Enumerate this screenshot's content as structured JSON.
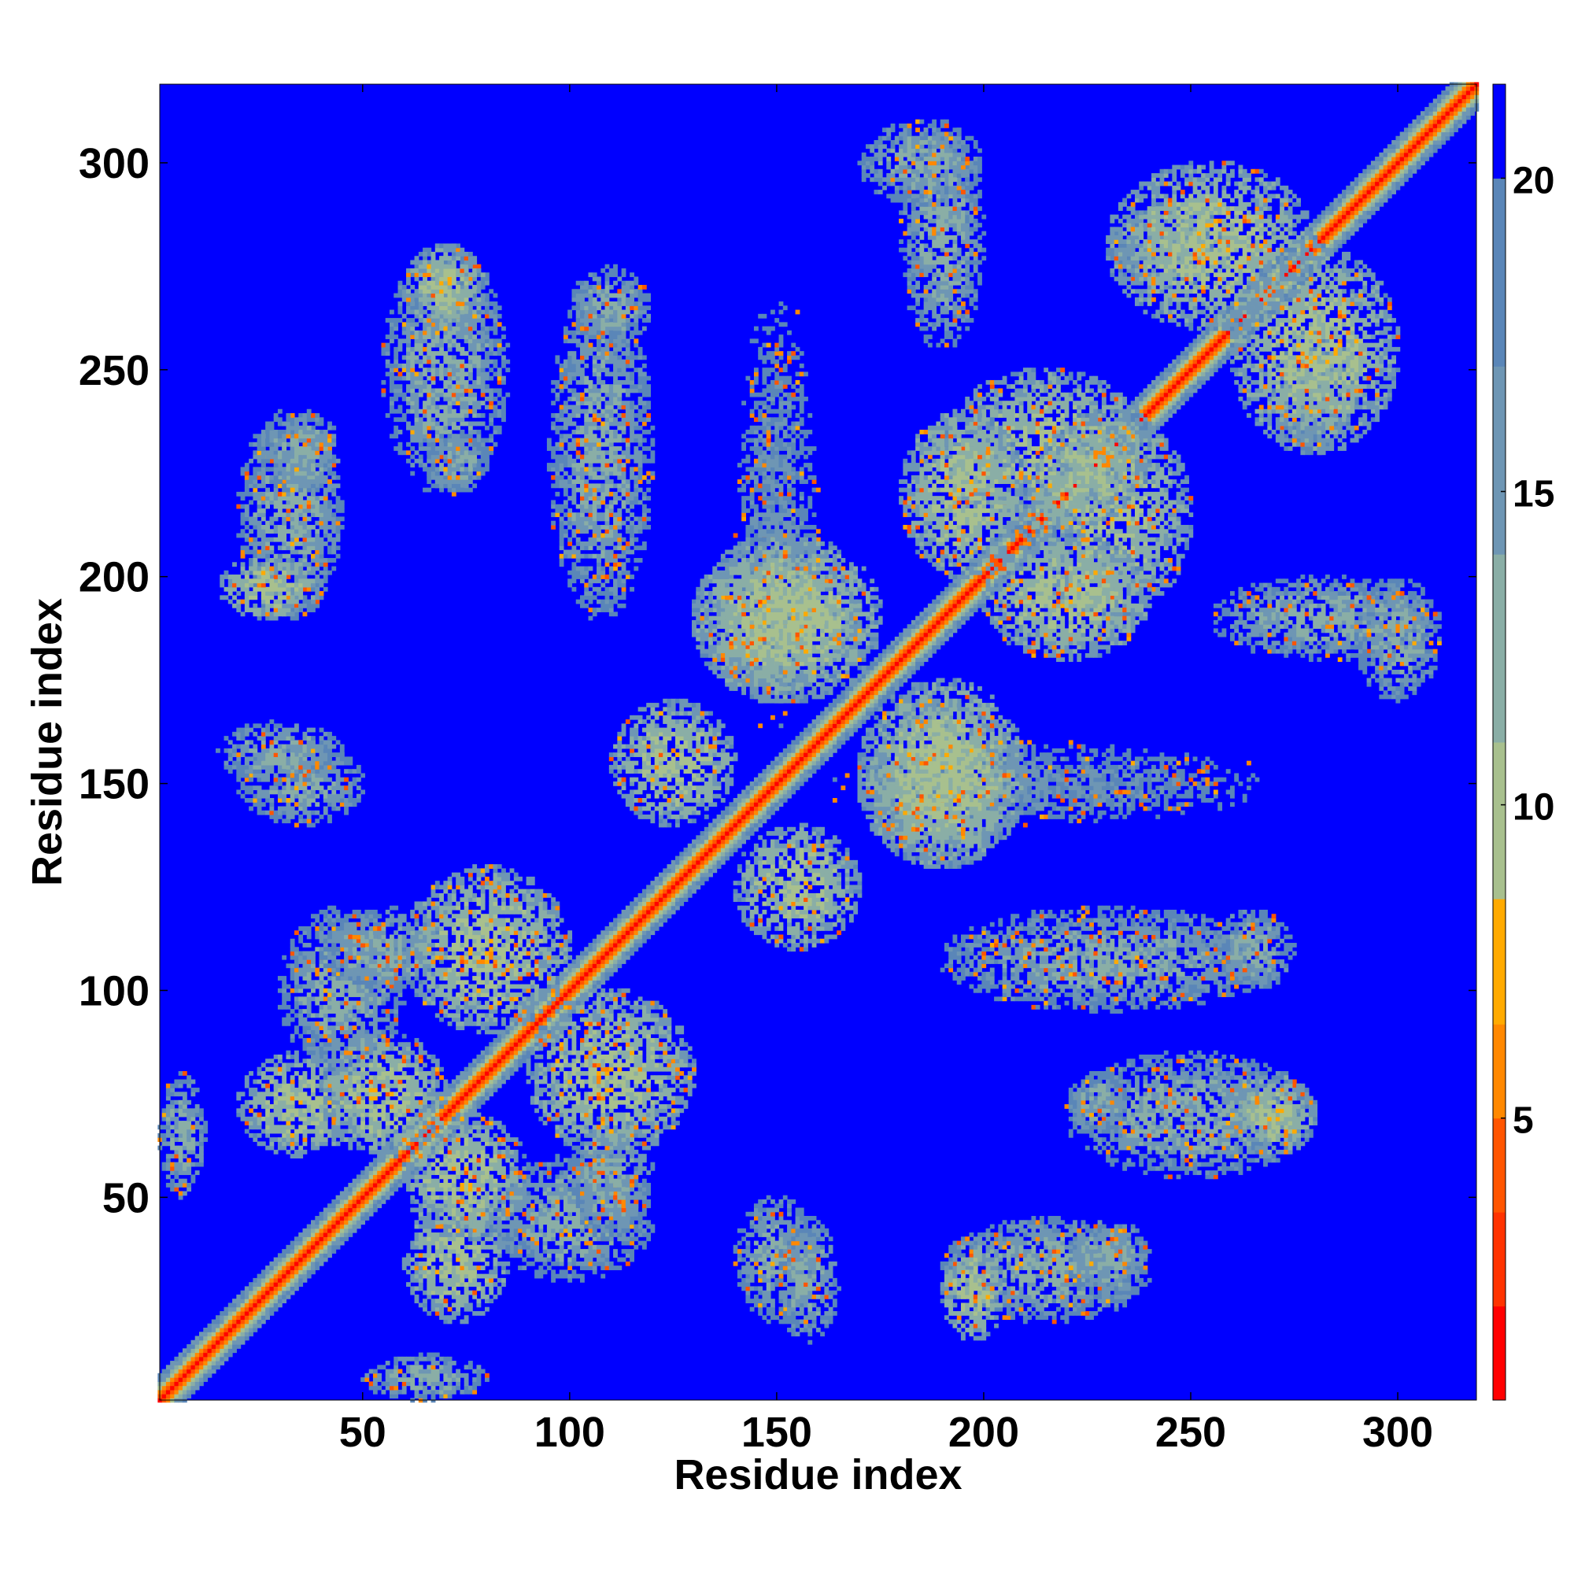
{
  "chart_data": {
    "type": "heatmap",
    "title": "",
    "xlabel": "Residue index",
    "ylabel": "Residue index",
    "xlim": [
      1,
      319
    ],
    "ylim": [
      1,
      319
    ],
    "xticks": [
      50,
      100,
      150,
      200,
      250,
      300
    ],
    "yticks": [
      50,
      100,
      150,
      200,
      250,
      300
    ],
    "xtick_labels": [
      "50",
      "100",
      "150",
      "200",
      "250",
      "300"
    ],
    "ytick_labels": [
      "50",
      "100",
      "150",
      "200",
      "250",
      "300"
    ],
    "grid": false,
    "colorbar": {
      "range": [
        0.5,
        21.5
      ],
      "ticks": [
        5,
        10,
        15,
        20
      ],
      "tick_labels": [
        "5",
        "10",
        "15",
        "20"
      ],
      "cutoff": 20,
      "colors": [
        "#ff0000",
        "#ff3300",
        "#ff5500",
        "#ff8800",
        "#ffaa00",
        "#a8c08e",
        "#8aaea6",
        "#6e96b4",
        "#5a86b8",
        "#0000ff"
      ],
      "boundaries": [
        0.5,
        2,
        3.5,
        5,
        6.5,
        8.5,
        11,
        14,
        17,
        20,
        21.5
      ]
    },
    "contact_blocks": [
      {
        "x": [
          1,
          12
        ],
        "y": [
          50,
          80
        ],
        "level": "medium"
      },
      {
        "x": [
          20,
          45
        ],
        "y": [
          190,
          240
        ],
        "level": "medium"
      },
      {
        "x": [
          55,
          85
        ],
        "y": [
          220,
          280
        ],
        "level": "medium"
      },
      {
        "x": [
          95,
          120
        ],
        "y": [
          190,
          270
        ],
        "level": "medium"
      },
      {
        "x": [
          140,
          160
        ],
        "y": [
          160,
          270
        ],
        "level": "low"
      },
      {
        "x": [
          180,
          200
        ],
        "y": [
          255,
          310
        ],
        "level": "medium"
      },
      {
        "x": [
          20,
          50
        ],
        "y": [
          140,
          160
        ],
        "level": "medium"
      },
      {
        "x": [
          30,
          60
        ],
        "y": [
          80,
          120
        ],
        "level": "medium"
      },
      {
        "x": [
          60,
          85
        ],
        "y": [
          20,
          50
        ],
        "level": "high"
      },
      {
        "x": [
          100,
          120
        ],
        "y": [
          40,
          70
        ],
        "level": "medium"
      },
      {
        "x": [
          150,
          165
        ],
        "y": [
          15,
          45
        ],
        "level": "medium"
      },
      {
        "x": [
          190,
          205
        ],
        "y": [
          15,
          40
        ],
        "level": "high"
      },
      {
        "x": [
          220,
          240
        ],
        "y": [
          25,
          45
        ],
        "level": "medium"
      },
      {
        "x": [
          220,
          235
        ],
        "y": [
          65,
          80
        ],
        "level": "medium"
      },
      {
        "x": [
          260,
          280
        ],
        "y": [
          60,
          80
        ],
        "level": "high"
      },
      {
        "x": [
          255,
          275
        ],
        "y": [
          100,
          120
        ],
        "level": "medium"
      },
      {
        "x": [
          270,
          290
        ],
        "y": [
          230,
          260
        ],
        "level": "medium"
      },
      {
        "x": [
          290,
          310
        ],
        "y": [
          170,
          200
        ],
        "level": "medium"
      },
      {
        "x": [
          170,
          210
        ],
        "y": [
          130,
          170
        ],
        "level": "high"
      },
      {
        "x": [
          130,
          175
        ],
        "y": [
          170,
          210
        ],
        "level": "high"
      },
      {
        "x": [
          40,
          70
        ],
        "y": [
          60,
          90
        ],
        "level": "high"
      },
      {
        "x": [
          60,
          100
        ],
        "y": [
          90,
          130
        ],
        "level": "high"
      },
      {
        "x": [
          110,
          140
        ],
        "y": [
          140,
          170
        ],
        "level": "high"
      },
      {
        "x": [
          190,
          240
        ],
        "y": [
          210,
          250
        ],
        "level": "high"
      },
      {
        "x": [
          230,
          280
        ],
        "y": [
          260,
          300
        ],
        "level": "high"
      },
      {
        "x": [
          200,
          240
        ],
        "y": [
          180,
          210
        ],
        "level": "high"
      }
    ]
  }
}
